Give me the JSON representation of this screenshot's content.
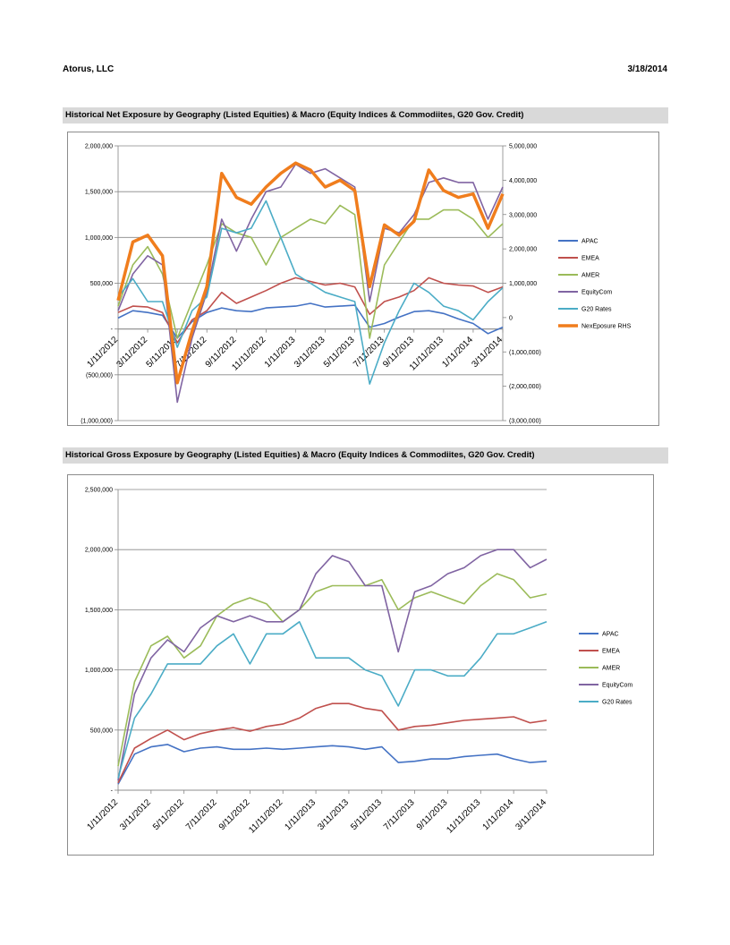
{
  "header": {
    "company": "Atorus, LLC",
    "date": "3/18/2014"
  },
  "chart_data": [
    {
      "type": "line",
      "title": "Historical Net Exposure by Geography (Listed Equities) & Macro (Equity Indices & Commodiites, G20 Gov. Credit)",
      "x_tick_labels": [
        "1/11/2012",
        "3/11/2012",
        "5/11/2012",
        "7/11/2012",
        "9/11/2012",
        "11/11/2012",
        "1/11/2013",
        "3/11/2013",
        "5/11/2013",
        "7/11/2013",
        "9/11/2013",
        "11/11/2013",
        "1/11/2014",
        "3/11/2014"
      ],
      "x": [
        "2012-01",
        "2012-02",
        "2012-03",
        "2012-04",
        "2012-05",
        "2012-06",
        "2012-07",
        "2012-08",
        "2012-09",
        "2012-10",
        "2012-11",
        "2012-12",
        "2013-01",
        "2013-02",
        "2013-03",
        "2013-04",
        "2013-05",
        "2013-06",
        "2013-07",
        "2013-08",
        "2013-09",
        "2013-10",
        "2013-11",
        "2013-12",
        "2014-01",
        "2014-02",
        "2014-03"
      ],
      "y_left": {
        "ylim": [
          -1000000,
          2000000
        ],
        "ticks": [
          "2,000,000",
          "1,500,000",
          "1,000,000",
          "500,000",
          "-",
          "(500,000)",
          "(1,000,000)"
        ]
      },
      "y_right": {
        "ylim": [
          -3000000,
          5000000
        ],
        "ticks": [
          "5,000,000",
          "4,000,000",
          "3,000,000",
          "2,000,000",
          "1,000,000",
          "0",
          "(1,000,000)",
          "(2,000,000)",
          "(3,000,000)"
        ]
      },
      "grid": true,
      "legend_position": "right",
      "series": [
        {
          "name": "APAC",
          "color": "#4472c4",
          "axis": "left",
          "values": [
            120000,
            200000,
            180000,
            150000,
            -100000,
            80000,
            180000,
            230000,
            200000,
            190000,
            230000,
            240000,
            250000,
            280000,
            240000,
            250000,
            260000,
            20000,
            60000,
            130000,
            190000,
            200000,
            170000,
            110000,
            60000,
            -50000,
            20000
          ]
        },
        {
          "name": "EMEA",
          "color": "#c0504d",
          "axis": "left",
          "values": [
            180000,
            250000,
            240000,
            180000,
            -150000,
            100000,
            200000,
            400000,
            280000,
            350000,
            420000,
            500000,
            560000,
            520000,
            480000,
            500000,
            460000,
            160000,
            300000,
            350000,
            420000,
            560000,
            500000,
            480000,
            470000,
            400000,
            460000
          ]
        },
        {
          "name": "AMER",
          "color": "#9bbb59",
          "axis": "left",
          "values": [
            250000,
            700000,
            900000,
            600000,
            -100000,
            300000,
            700000,
            1150000,
            1050000,
            1000000,
            700000,
            1000000,
            1100000,
            1200000,
            1150000,
            1350000,
            1250000,
            -100000,
            700000,
            950000,
            1200000,
            1200000,
            1300000,
            1300000,
            1200000,
            1000000,
            1150000
          ]
        },
        {
          "name": "EquityCom",
          "color": "#8064a2",
          "axis": "left",
          "values": [
            200000,
            600000,
            800000,
            700000,
            -800000,
            -100000,
            400000,
            1200000,
            850000,
            1200000,
            1500000,
            1550000,
            1800000,
            1700000,
            1750000,
            1650000,
            1550000,
            300000,
            1100000,
            1050000,
            1250000,
            1600000,
            1650000,
            1600000,
            1600000,
            1200000,
            1550000
          ]
        },
        {
          "name": "G20 Rates",
          "color": "#4bacc6",
          "axis": "left",
          "values": [
            350000,
            550000,
            300000,
            300000,
            -200000,
            200000,
            350000,
            1100000,
            1050000,
            1100000,
            1400000,
            1000000,
            600000,
            500000,
            400000,
            350000,
            300000,
            -600000,
            -150000,
            200000,
            500000,
            400000,
            250000,
            200000,
            100000,
            300000,
            450000
          ]
        },
        {
          "name": "NexEposure RHS",
          "color": "#f07d1d",
          "axis": "right",
          "values": [
            500000,
            2200000,
            2400000,
            1800000,
            -1900000,
            -400000,
            900000,
            4200000,
            3500000,
            3300000,
            3800000,
            4200000,
            4500000,
            4300000,
            3800000,
            4000000,
            3700000,
            900000,
            2700000,
            2400000,
            2800000,
            4300000,
            3700000,
            3500000,
            3600000,
            2600000,
            3600000
          ]
        }
      ]
    },
    {
      "type": "line",
      "title": "Historical Gross Exposure by Geography (Listed Equities) & Macro (Equity Indices & Commodiites, G20 Gov. Credit)",
      "x_tick_labels": [
        "1/11/2012",
        "3/11/2012",
        "5/11/2012",
        "7/11/2012",
        "9/11/2012",
        "11/11/2012",
        "1/11/2013",
        "3/11/2013",
        "5/11/2013",
        "7/11/2013",
        "9/11/2013",
        "11/11/2013",
        "1/11/2014",
        "3/11/2014"
      ],
      "x": [
        "2012-01",
        "2012-02",
        "2012-03",
        "2012-04",
        "2012-05",
        "2012-06",
        "2012-07",
        "2012-08",
        "2012-09",
        "2012-10",
        "2012-11",
        "2012-12",
        "2013-01",
        "2013-02",
        "2013-03",
        "2013-04",
        "2013-05",
        "2013-06",
        "2013-07",
        "2013-08",
        "2013-09",
        "2013-10",
        "2013-11",
        "2013-12",
        "2014-01",
        "2014-02",
        "2014-03"
      ],
      "y_left": {
        "ylim": [
          0,
          2500000
        ],
        "ticks": [
          "2,500,000",
          "2,000,000",
          "1,500,000",
          "1,000,000",
          "500,000",
          "-"
        ]
      },
      "grid": true,
      "legend_position": "right",
      "series": [
        {
          "name": "APAC",
          "color": "#4472c4",
          "values": [
            50000,
            300000,
            360000,
            380000,
            320000,
            350000,
            360000,
            340000,
            340000,
            350000,
            340000,
            350000,
            360000,
            370000,
            360000,
            340000,
            360000,
            230000,
            240000,
            260000,
            260000,
            280000,
            290000,
            300000,
            260000,
            230000,
            240000
          ]
        },
        {
          "name": "EMEA",
          "color": "#c0504d",
          "values": [
            60000,
            350000,
            430000,
            500000,
            420000,
            470000,
            500000,
            520000,
            490000,
            530000,
            550000,
            600000,
            680000,
            720000,
            720000,
            680000,
            660000,
            500000,
            530000,
            540000,
            560000,
            580000,
            590000,
            600000,
            610000,
            560000,
            580000
          ]
        },
        {
          "name": "AMER",
          "color": "#9bbb59",
          "values": [
            200000,
            900000,
            1200000,
            1280000,
            1100000,
            1200000,
            1450000,
            1550000,
            1600000,
            1550000,
            1400000,
            1500000,
            1650000,
            1700000,
            1700000,
            1700000,
            1750000,
            1500000,
            1600000,
            1650000,
            1600000,
            1550000,
            1700000,
            1800000,
            1750000,
            1600000,
            1630000
          ]
        },
        {
          "name": "EquityCom",
          "color": "#8064a2",
          "values": [
            80000,
            800000,
            1100000,
            1250000,
            1150000,
            1350000,
            1450000,
            1400000,
            1450000,
            1400000,
            1400000,
            1500000,
            1800000,
            1950000,
            1900000,
            1700000,
            1700000,
            1150000,
            1650000,
            1700000,
            1800000,
            1850000,
            1950000,
            2000000,
            2000000,
            1850000,
            1920000
          ]
        },
        {
          "name": "G20 Rates",
          "color": "#4bacc6",
          "values": [
            100000,
            600000,
            800000,
            1050000,
            1050000,
            1050000,
            1200000,
            1300000,
            1050000,
            1300000,
            1300000,
            1400000,
            1100000,
            1100000,
            1100000,
            1000000,
            950000,
            700000,
            1000000,
            1000000,
            950000,
            950000,
            1100000,
            1300000,
            1300000,
            1350000,
            1400000
          ]
        }
      ]
    }
  ]
}
